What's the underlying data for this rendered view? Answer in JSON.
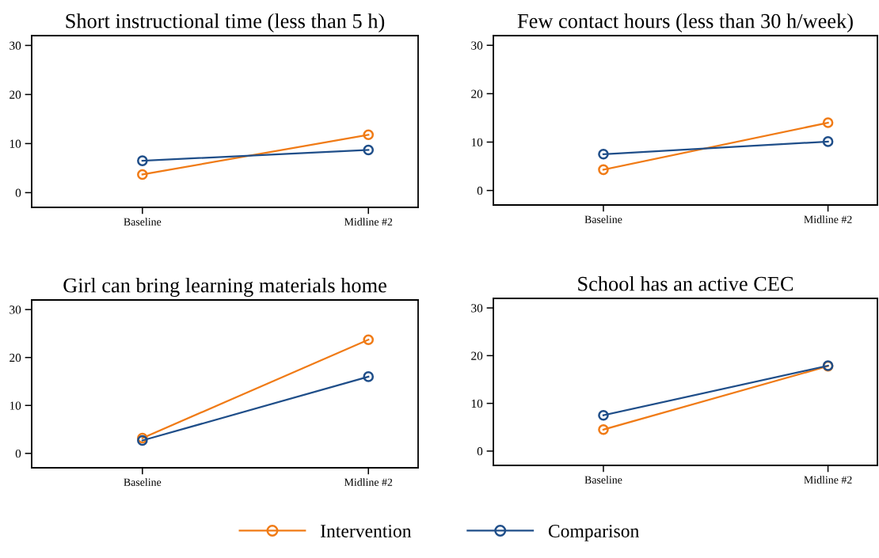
{
  "chart_data": [
    {
      "type": "line",
      "title": "Short instructional time (less than 5 h)",
      "categories": [
        "Baseline",
        "Midline #2"
      ],
      "ylim": [
        -3,
        32
      ],
      "yticks": [
        0,
        10,
        20,
        30
      ],
      "grid": false,
      "marker": "circle",
      "legend": "bottom",
      "series": [
        {
          "name": "Intervention",
          "color": "#f07b16",
          "values": [
            3.7,
            11.8
          ]
        },
        {
          "name": "Comparison",
          "color": "#1f4e89",
          "values": [
            6.5,
            8.7
          ]
        }
      ]
    },
    {
      "type": "line",
      "title": "Few contact hours (less than 30 h/week)",
      "categories": [
        "Baseline",
        "Midline #2"
      ],
      "ylim": [
        -3,
        32
      ],
      "yticks": [
        0,
        10,
        20,
        30
      ],
      "grid": false,
      "marker": "circle",
      "series": [
        {
          "name": "Intervention",
          "color": "#f07b16",
          "values": [
            4.3,
            14.0
          ]
        },
        {
          "name": "Comparison",
          "color": "#1f4e89",
          "values": [
            7.5,
            10.1
          ]
        }
      ]
    },
    {
      "type": "line",
      "title": "Girl can bring learning materials home",
      "categories": [
        "Baseline",
        "Midline #2"
      ],
      "ylim": [
        -3,
        32
      ],
      "yticks": [
        0,
        10,
        20,
        30
      ],
      "grid": false,
      "marker": "circle",
      "series": [
        {
          "name": "Intervention",
          "color": "#f07b16",
          "values": [
            3.2,
            23.7
          ]
        },
        {
          "name": "Comparison",
          "color": "#1f4e89",
          "values": [
            2.7,
            16.0
          ]
        }
      ]
    },
    {
      "type": "line",
      "title": "School has an active CEC",
      "categories": [
        "Baseline",
        "Midline #2"
      ],
      "ylim": [
        -3,
        32
      ],
      "yticks": [
        0,
        10,
        20,
        30
      ],
      "grid": false,
      "marker": "circle",
      "series": [
        {
          "name": "Intervention",
          "color": "#f07b16",
          "values": [
            4.5,
            17.8
          ]
        },
        {
          "name": "Comparison",
          "color": "#1f4e89",
          "values": [
            7.5,
            17.9
          ]
        }
      ]
    }
  ]
}
